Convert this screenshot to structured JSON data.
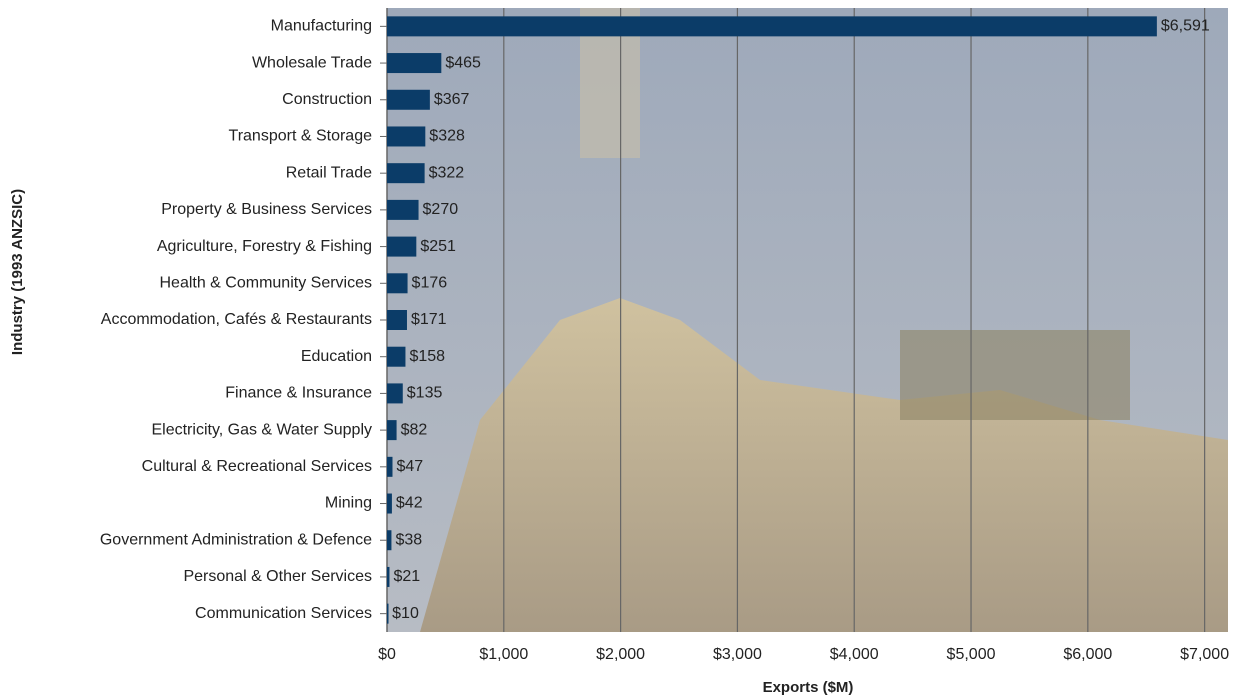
{
  "chart_data": {
    "type": "bar",
    "orientation": "horizontal",
    "x_label": "Exports ($M)",
    "y_label": "Industry (1993 ANZSIC)",
    "categories": [
      "Manufacturing",
      "Wholesale Trade",
      "Construction",
      "Transport & Storage",
      "Retail Trade",
      "Property & Business Services",
      "Agriculture, Forestry & Fishing",
      "Health & Community Services",
      "Accommodation, Cafés & Restaurants",
      "Education",
      "Finance & Insurance",
      "Electricity, Gas & Water Supply",
      "Cultural & Recreational Services",
      "Mining",
      "Government Administration & Defence",
      "Personal & Other Services",
      "Communication Services"
    ],
    "values": [
      6591,
      465,
      367,
      328,
      322,
      270,
      251,
      176,
      171,
      158,
      135,
      82,
      47,
      42,
      38,
      21,
      10
    ],
    "value_labels": [
      "$6,591",
      "$465",
      "$367",
      "$328",
      "$322",
      "$270",
      "$251",
      "$176",
      "$171",
      "$158",
      "$135",
      "$82",
      "$47",
      "$42",
      "$38",
      "$21",
      "$10"
    ],
    "color": "#0b3c68",
    "xlim": [
      0,
      7200
    ],
    "xticks": [
      {
        "value": 0,
        "label": "$0"
      },
      {
        "value": 1000,
        "label": "$1,000"
      },
      {
        "value": 2000,
        "label": "$2,000"
      },
      {
        "value": 3000,
        "label": "$3,000"
      },
      {
        "value": 4000,
        "label": "$4,000"
      },
      {
        "value": 5000,
        "label": "$5,000"
      },
      {
        "value": 6000,
        "label": "$6,000"
      },
      {
        "value": 7000,
        "label": "$7,000"
      }
    ],
    "grid": true
  }
}
